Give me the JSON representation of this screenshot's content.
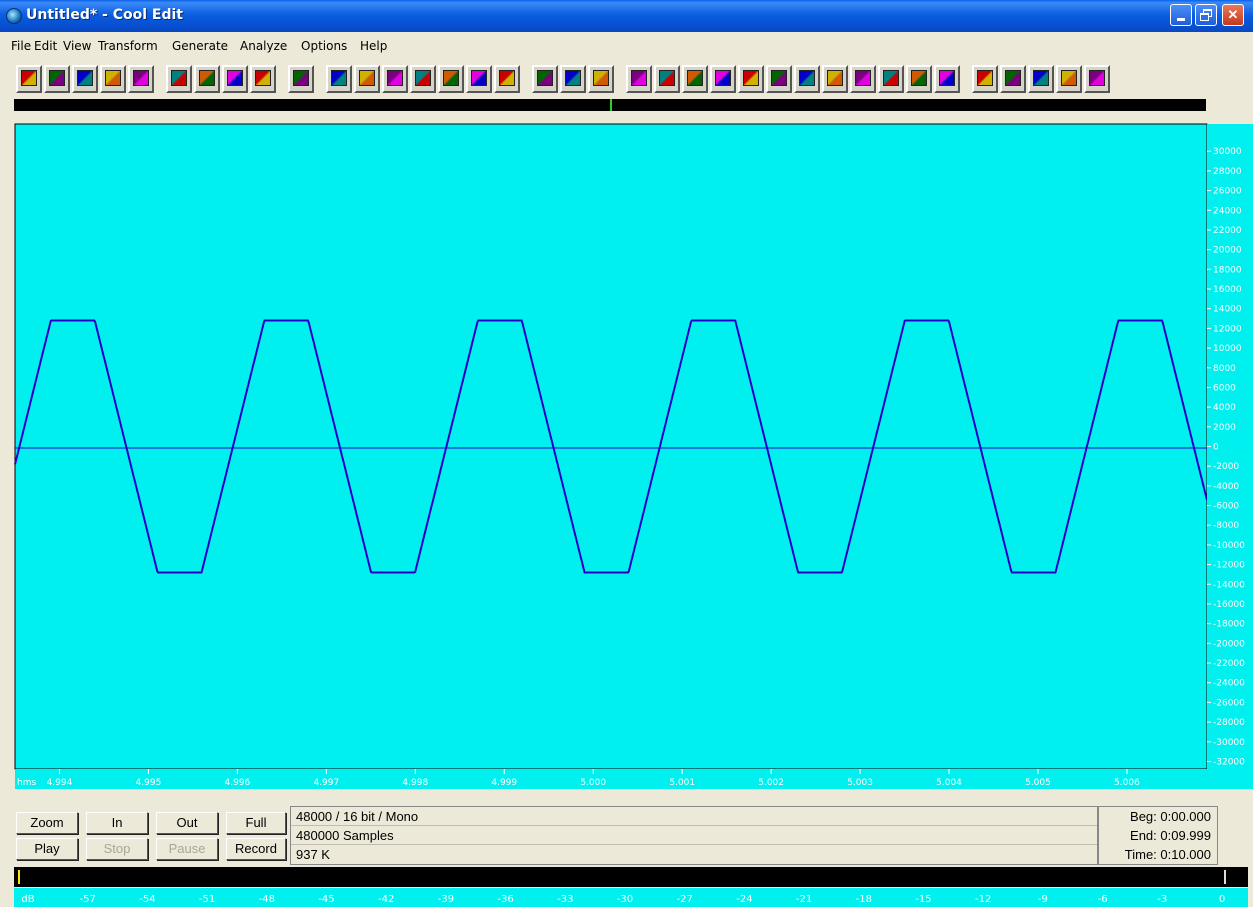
{
  "window": {
    "title": "Untitled* - Cool Edit"
  },
  "menu": [
    "File",
    "Edit",
    "View",
    "Transform",
    "Generate",
    "Analyze",
    "Options",
    "Help"
  ],
  "toolbar_icons": [
    "cursor-wave-icon",
    "open-folder-icon",
    "save-icon",
    "loop-play-icon",
    "headphones-icon",
    "rewind-icon",
    "stop-bar-icon",
    "swap-icon",
    "music-note-icon",
    "cursor-select-icon",
    "target-icon",
    "help-icon",
    "refresh-icon",
    "color-bars-icon",
    "fft-icon",
    "filter-icon",
    "text-cursor-icon",
    "notepad-icon",
    "eq-icon",
    "eq-param-icon",
    "waveform-edit-icon",
    "waveform-red-icon",
    "waveform-delete-icon",
    "waveform-green-icon",
    "waveform-blue-icon",
    "waveform-grid-icon",
    "waveform-arrows-icon",
    "waveform-dots-icon",
    "waveform-hatch-icon",
    "waveform-pattern-icon",
    "waveform-diagonal-icon",
    "waveform-zigzag-icon",
    "record-dot-icon",
    "ramp-icon",
    "arrow-down-icon",
    "triangle-icon",
    "green-grid-icon"
  ],
  "waveform": {
    "background": "#00f0f0",
    "line_color": "#2a00c8",
    "amplitude_label_max": 12800,
    "time_start": 4.9935,
    "time_end": 5.0069,
    "period_ms": 2.4,
    "y_range": [
      -32768,
      32767
    ],
    "time_unit_label": "hms",
    "time_ticks": [
      "4.994",
      "4.995",
      "4.996",
      "4.997",
      "4.998",
      "4.999",
      "5.000",
      "5.001",
      "5.002",
      "5.003",
      "5.004",
      "5.005",
      "5.006"
    ],
    "amp_ticks": [
      "30000",
      "28000",
      "26000",
      "24000",
      "22000",
      "20000",
      "18000",
      "16000",
      "14000",
      "12000",
      "10000",
      "8000",
      "6000",
      "4000",
      "2000",
      "0",
      "-2000",
      "-4000",
      "-6000",
      "-8000",
      "-10000",
      "-12000",
      "-14000",
      "-16000",
      "-18000",
      "-20000",
      "-22000",
      "-24000",
      "-26000",
      "-28000",
      "-30000",
      "-32000"
    ]
  },
  "controls": {
    "zoom": "Zoom",
    "zoom_in": "In",
    "zoom_out": "Out",
    "full": "Full",
    "play": "Play",
    "stop": "Stop",
    "pause": "Pause",
    "record": "Record"
  },
  "info": {
    "format": "48000 / 16 bit / Mono",
    "samples": "480000 Samples",
    "size": "937 K"
  },
  "time": {
    "beg": "Beg:  0:00.000",
    "end": "End:  0:09.999",
    "length": "Time:  0:10.000"
  },
  "meter": {
    "ticks": [
      "dB",
      "-57",
      "-54",
      "-51",
      "-48",
      "-45",
      "-42",
      "-39",
      "-36",
      "-33",
      "-30",
      "-27",
      "-24",
      "-21",
      "-18",
      "-15",
      "-12",
      "-9",
      "-6",
      "-3",
      "0"
    ]
  }
}
